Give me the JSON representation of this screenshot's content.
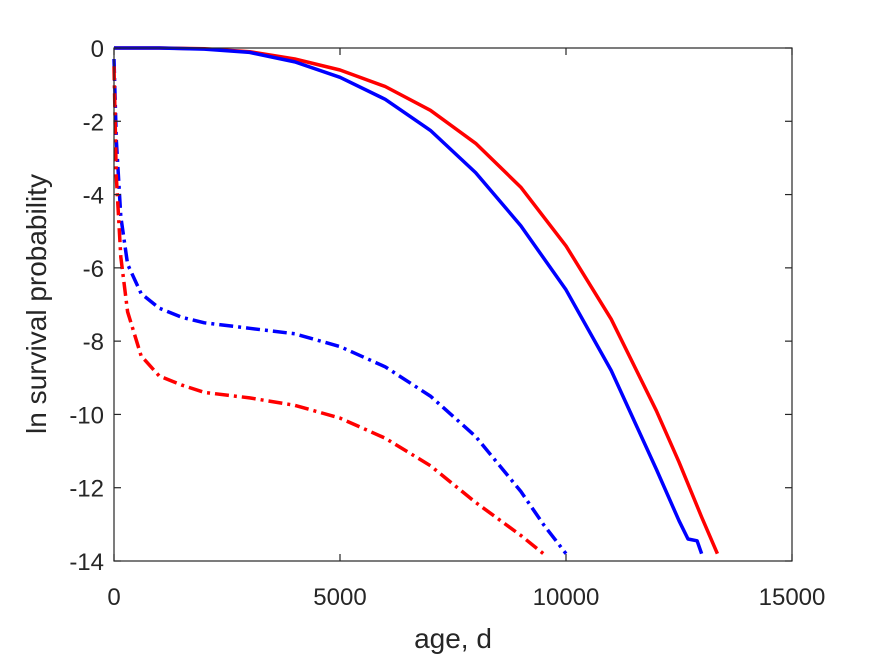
{
  "chart_data": {
    "type": "line",
    "xlabel": "age, d",
    "ylabel": "ln survival probability",
    "xlim": [
      0,
      15000
    ],
    "ylim": [
      -14,
      0
    ],
    "xticks": [
      0,
      5000,
      10000,
      15000
    ],
    "yticks": [
      0,
      -2,
      -4,
      -6,
      -8,
      -10,
      -12,
      -14
    ],
    "grid": false,
    "series": [
      {
        "color": "#ff0000",
        "style": "solid",
        "x": [
          0,
          1000,
          2000,
          3000,
          4000,
          5000,
          6000,
          7000,
          8000,
          9000,
          10000,
          11000,
          12000,
          12500,
          13000,
          13350
        ],
        "y": [
          0,
          0,
          -0.02,
          -0.1,
          -0.3,
          -0.6,
          -1.05,
          -1.7,
          -2.6,
          -3.8,
          -5.4,
          -7.4,
          -9.9,
          -11.3,
          -12.8,
          -13.8
        ]
      },
      {
        "color": "#0000ff",
        "style": "solid",
        "x": [
          0,
          1000,
          2000,
          3000,
          4000,
          5000,
          6000,
          7000,
          8000,
          9000,
          10000,
          11000,
          12000,
          12500,
          12700,
          12900,
          13000
        ],
        "y": [
          0,
          0,
          -0.03,
          -0.12,
          -0.38,
          -0.8,
          -1.4,
          -2.25,
          -3.4,
          -4.85,
          -6.6,
          -8.8,
          -11.5,
          -12.9,
          -13.4,
          -13.45,
          -13.8
        ]
      },
      {
        "color": "#0000ff",
        "style": "dashdot",
        "x": [
          0,
          50,
          150,
          300,
          600,
          1000,
          1500,
          2000,
          3000,
          4000,
          5000,
          6000,
          7000,
          8000,
          9000,
          9500,
          10000
        ],
        "y": [
          -0.3,
          -2.5,
          -4.6,
          -5.9,
          -6.7,
          -7.1,
          -7.35,
          -7.5,
          -7.65,
          -7.8,
          -8.15,
          -8.7,
          -9.5,
          -10.6,
          -12.1,
          -13.0,
          -13.8
        ]
      },
      {
        "color": "#ff0000",
        "style": "dashdot",
        "x": [
          0,
          50,
          150,
          300,
          600,
          1000,
          1500,
          2000,
          3000,
          4000,
          5000,
          6000,
          7000,
          8000,
          9000,
          9500
        ],
        "y": [
          -0.5,
          -3.5,
          -5.7,
          -7.2,
          -8.4,
          -8.95,
          -9.2,
          -9.4,
          -9.55,
          -9.75,
          -10.1,
          -10.65,
          -11.4,
          -12.4,
          -13.3,
          -13.8
        ]
      }
    ]
  }
}
